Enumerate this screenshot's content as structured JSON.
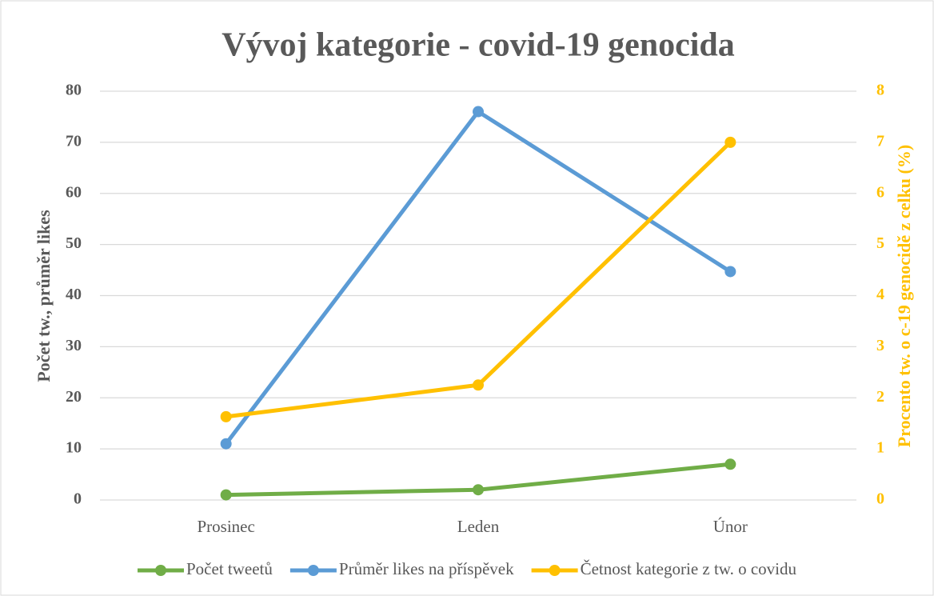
{
  "chart_data": {
    "type": "line",
    "title": "Vývoj kategorie - covid-19 genocida",
    "ylabel": "Počet tw., průměr likes",
    "y2label": "Procento tw. o c-19 genocidě z celku (%)",
    "y2color": "#ffc000",
    "categories": [
      "Prosinec",
      "Leden",
      "Únor"
    ],
    "series": [
      {
        "name": "Počet tweetů",
        "color": "#70ad47",
        "values": [
          1,
          2,
          7
        ]
      },
      {
        "name": "Průměr likes na příspěvek",
        "color": "#5b9bd5",
        "values": [
          11,
          76,
          44.7
        ]
      },
      {
        "name": "Četnost kategorie z tw. o covidu",
        "color": "#ffc000",
        "axis": "y2",
        "values": [
          1.63,
          2.25,
          7.0
        ]
      }
    ],
    "ylim": [
      0,
      80
    ],
    "yticks": [
      0,
      10,
      20,
      30,
      40,
      50,
      60,
      70,
      80
    ],
    "y2lim": [
      0,
      8
    ],
    "y2ticks": [
      0,
      1,
      2,
      3,
      4,
      5,
      6,
      7,
      8
    ],
    "grid": true,
    "legend": "bottom"
  }
}
